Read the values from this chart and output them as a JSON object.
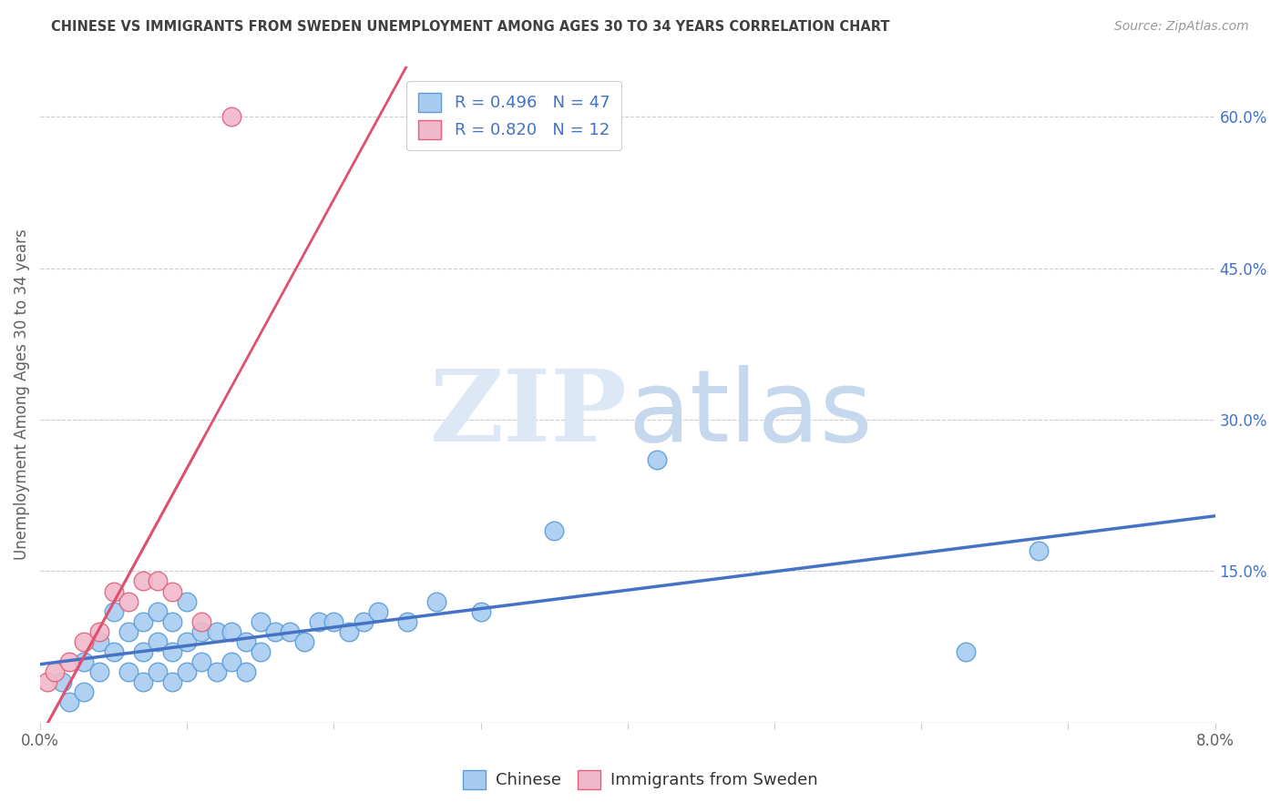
{
  "title": "CHINESE VS IMMIGRANTS FROM SWEDEN UNEMPLOYMENT AMONG AGES 30 TO 34 YEARS CORRELATION CHART",
  "source": "Source: ZipAtlas.com",
  "ylabel": "Unemployment Among Ages 30 to 34 years",
  "xlim": [
    0.0,
    0.08
  ],
  "ylim": [
    0.0,
    0.65
  ],
  "xtick_positions": [
    0.0,
    0.01,
    0.02,
    0.03,
    0.04,
    0.05,
    0.06,
    0.07,
    0.08
  ],
  "xticklabels": [
    "0.0%",
    "",
    "",
    "",
    "",
    "",
    "",
    "",
    "8.0%"
  ],
  "ytick_right_pos": [
    0.0,
    0.15,
    0.3,
    0.45,
    0.6
  ],
  "ytick_right_labels": [
    "",
    "15.0%",
    "30.0%",
    "45.0%",
    "60.0%"
  ],
  "legend_line1": "R = 0.496   N = 47",
  "legend_line2": "R = 0.820   N = 12",
  "chinese_color": "#a8ccf0",
  "sweden_color": "#f0b8ca",
  "chinese_edge": "#5b9bd5",
  "sweden_edge": "#e0607a",
  "chinese_line": "#4472c4",
  "sweden_line": "#e05070",
  "bg_color": "#ffffff",
  "grid_color": "#cccccc",
  "title_color": "#404040",
  "label_color": "#606060",
  "right_tick_color": "#4472c4",
  "chinese_x": [
    0.0015,
    0.002,
    0.003,
    0.003,
    0.004,
    0.004,
    0.005,
    0.005,
    0.006,
    0.006,
    0.007,
    0.007,
    0.007,
    0.008,
    0.008,
    0.008,
    0.009,
    0.009,
    0.009,
    0.01,
    0.01,
    0.01,
    0.011,
    0.011,
    0.012,
    0.012,
    0.013,
    0.013,
    0.014,
    0.014,
    0.015,
    0.015,
    0.016,
    0.017,
    0.018,
    0.019,
    0.02,
    0.021,
    0.022,
    0.023,
    0.025,
    0.027,
    0.03,
    0.035,
    0.042,
    0.063,
    0.068
  ],
  "chinese_y": [
    0.04,
    0.02,
    0.06,
    0.03,
    0.08,
    0.05,
    0.11,
    0.07,
    0.05,
    0.09,
    0.04,
    0.07,
    0.1,
    0.05,
    0.08,
    0.11,
    0.04,
    0.07,
    0.1,
    0.05,
    0.08,
    0.12,
    0.06,
    0.09,
    0.05,
    0.09,
    0.06,
    0.09,
    0.05,
    0.08,
    0.07,
    0.1,
    0.09,
    0.09,
    0.08,
    0.1,
    0.1,
    0.09,
    0.1,
    0.11,
    0.1,
    0.12,
    0.11,
    0.19,
    0.26,
    0.07,
    0.17
  ],
  "sweden_x": [
    0.0005,
    0.001,
    0.002,
    0.003,
    0.004,
    0.005,
    0.006,
    0.007,
    0.008,
    0.009,
    0.011,
    0.013
  ],
  "sweden_y": [
    0.04,
    0.05,
    0.06,
    0.08,
    0.09,
    0.13,
    0.12,
    0.14,
    0.14,
    0.13,
    0.1,
    0.6
  ],
  "watermark_zip_color": "#dce8f5",
  "watermark_atlas_color": "#c5d8ed"
}
